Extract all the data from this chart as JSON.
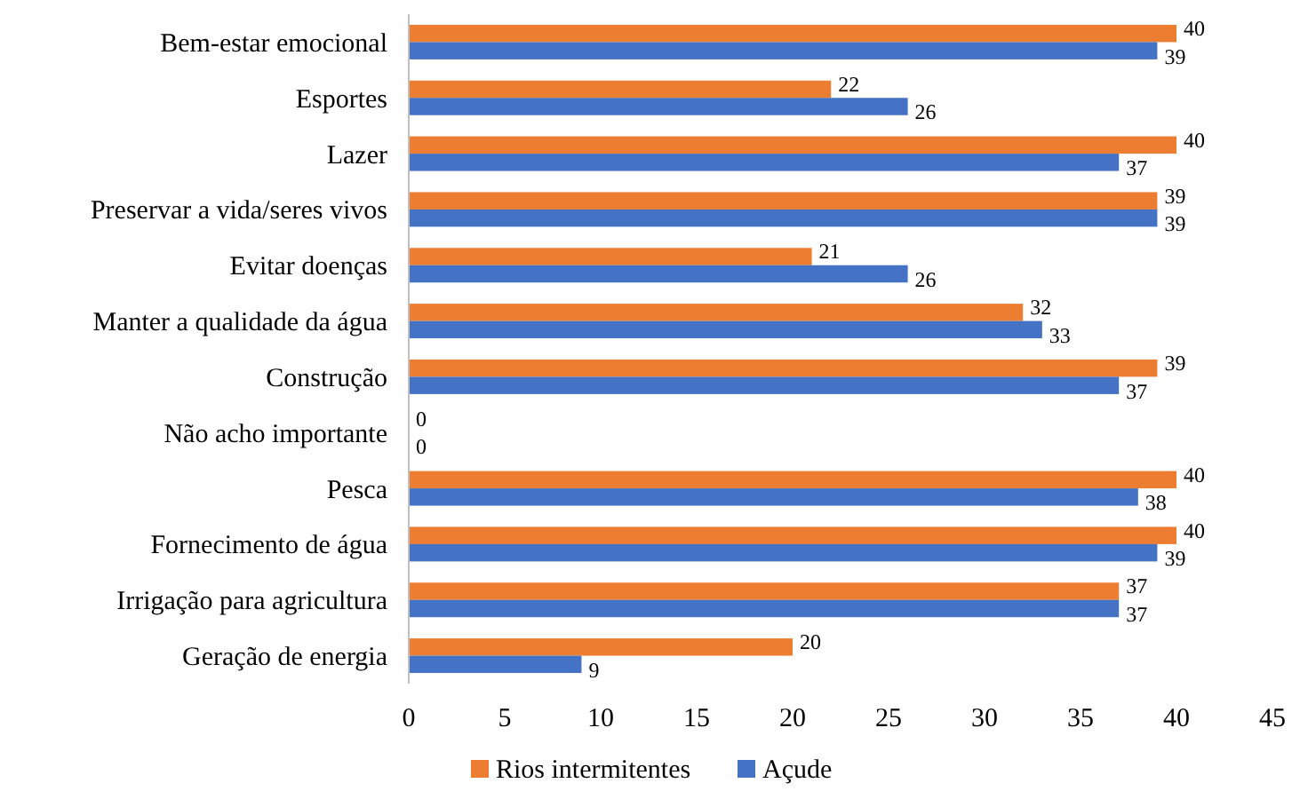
{
  "chart_data": {
    "type": "bar",
    "orientation": "horizontal",
    "categories": [
      "Bem-estar emocional",
      "Esportes",
      "Lazer",
      "Preservar a vida/seres vivos",
      "Evitar doenças",
      "Manter a qualidade da água",
      "Construção",
      "Não acho importante",
      "Pesca",
      "Fornecimento de água",
      "Irrigação para agricultura",
      "Geração de energia"
    ],
    "series": [
      {
        "name": "Rios intermitentes",
        "color": "#ed7d31",
        "values": [
          40,
          22,
          40,
          39,
          21,
          32,
          39,
          0,
          40,
          40,
          37,
          20
        ]
      },
      {
        "name": "Açude",
        "color": "#4472c4",
        "values": [
          39,
          26,
          37,
          39,
          26,
          33,
          37,
          0,
          38,
          39,
          37,
          9
        ]
      }
    ],
    "xlim": [
      0,
      45
    ],
    "xticks": [
      0,
      5,
      10,
      15,
      20,
      25,
      30,
      35,
      40,
      45
    ],
    "data_labels": true,
    "legend": "bottom",
    "grid": false
  }
}
